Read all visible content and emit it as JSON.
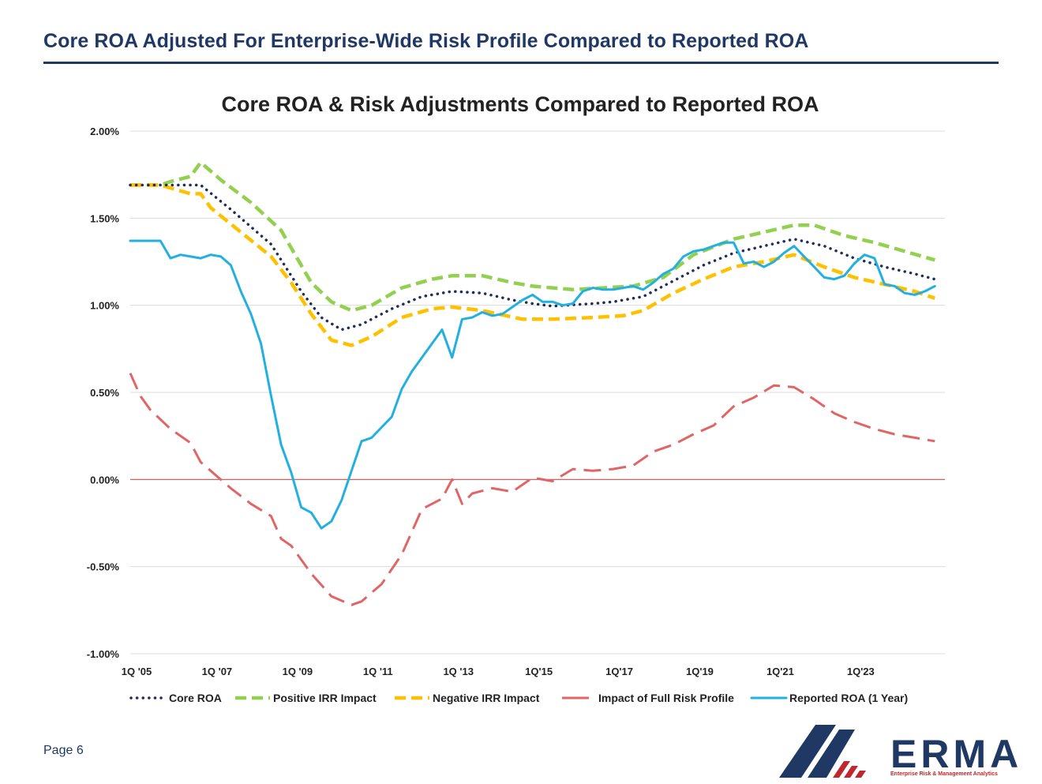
{
  "page": {
    "title": "Core ROA Adjusted For Enterprise-Wide Risk Profile Compared to Reported ROA",
    "page_number": "Page 6"
  },
  "logo": {
    "word": "ERMA",
    "tagline": "Enterprise Risk & Management Analytics",
    "colors": {
      "navy": "#1f3864",
      "red": "#c0262d"
    }
  },
  "chart_data": {
    "type": "line",
    "title": "Core ROA & Risk Adjustments Compared to Reported ROA",
    "xlabel": "",
    "ylabel": "",
    "ylim": [
      -1.0,
      2.0
    ],
    "yticks": [
      {
        "value": 2.0,
        "label": "2.00%"
      },
      {
        "value": 1.5,
        "label": "1.50%"
      },
      {
        "value": 1.0,
        "label": "1.00%"
      },
      {
        "value": 0.5,
        "label": "0.50%"
      },
      {
        "value": 0.0,
        "label": "0.00%"
      },
      {
        "value": -0.5,
        "label": "-0.50%"
      },
      {
        "value": -1.0,
        "label": "-1.00%"
      }
    ],
    "xlim": [
      2005.0,
      2025.25
    ],
    "xticks": [
      {
        "value": 2005,
        "label": "1Q '05"
      },
      {
        "value": 2007,
        "label": "1Q '07"
      },
      {
        "value": 2009,
        "label": "1Q '09"
      },
      {
        "value": 2011,
        "label": "1Q '11"
      },
      {
        "value": 2013,
        "label": "1Q '13"
      },
      {
        "value": 2015,
        "label": "1Q'15"
      },
      {
        "value": 2017,
        "label": "1Q'17"
      },
      {
        "value": 2019,
        "label": "1Q'19"
      },
      {
        "value": 2021,
        "label": "1Q'21"
      },
      {
        "value": 2023,
        "label": "1Q'23"
      }
    ],
    "grid": true,
    "legend_position": "bottom",
    "zero_line_color": "#c0504d",
    "series": [
      {
        "name": "Core ROA",
        "style": "dotted",
        "color": "#1f2d5c",
        "points": [
          [
            2005.0,
            1.69
          ],
          [
            2005.75,
            1.69
          ],
          [
            2006.5,
            1.69
          ],
          [
            2006.75,
            1.69
          ],
          [
            2007.5,
            1.55
          ],
          [
            2008.5,
            1.35
          ],
          [
            2009.25,
            1.08
          ],
          [
            2009.75,
            0.93
          ],
          [
            2010.25,
            0.86
          ],
          [
            2010.75,
            0.89
          ],
          [
            2011.5,
            0.98
          ],
          [
            2012.25,
            1.05
          ],
          [
            2013.0,
            1.08
          ],
          [
            2013.75,
            1.07
          ],
          [
            2014.5,
            1.03
          ],
          [
            2015.0,
            1.01
          ],
          [
            2015.5,
            0.995
          ],
          [
            2016.5,
            1.01
          ],
          [
            2017.0,
            1.02
          ],
          [
            2017.75,
            1.05
          ],
          [
            2018.5,
            1.14
          ],
          [
            2019.25,
            1.23
          ],
          [
            2020.0,
            1.3
          ],
          [
            2020.75,
            1.34
          ],
          [
            2021.5,
            1.38
          ],
          [
            2022.25,
            1.34
          ],
          [
            2023.0,
            1.27
          ],
          [
            2023.75,
            1.22
          ],
          [
            2024.5,
            1.18
          ],
          [
            2025.0,
            1.15
          ]
        ]
      },
      {
        "name": "Positive IRR Impact",
        "style": "dashed",
        "color": "#92d050",
        "points": [
          [
            2005.0,
            1.69
          ],
          [
            2005.75,
            1.69
          ],
          [
            2006.0,
            1.71
          ],
          [
            2006.5,
            1.74
          ],
          [
            2006.75,
            1.82
          ],
          [
            2007.25,
            1.72
          ],
          [
            2008.0,
            1.59
          ],
          [
            2008.75,
            1.43
          ],
          [
            2009.5,
            1.13
          ],
          [
            2010.0,
            1.02
          ],
          [
            2010.5,
            0.97
          ],
          [
            2011.0,
            1.0
          ],
          [
            2011.75,
            1.1
          ],
          [
            2012.5,
            1.15
          ],
          [
            2013.0,
            1.17
          ],
          [
            2013.75,
            1.17
          ],
          [
            2014.5,
            1.13
          ],
          [
            2015.0,
            1.11
          ],
          [
            2016.0,
            1.09
          ],
          [
            2016.75,
            1.1
          ],
          [
            2017.5,
            1.11
          ],
          [
            2018.25,
            1.16
          ],
          [
            2019.0,
            1.29
          ],
          [
            2020.0,
            1.38
          ],
          [
            2020.75,
            1.42
          ],
          [
            2021.5,
            1.46
          ],
          [
            2022.0,
            1.46
          ],
          [
            2022.75,
            1.4
          ],
          [
            2023.5,
            1.36
          ],
          [
            2024.25,
            1.31
          ],
          [
            2025.0,
            1.26
          ]
        ]
      },
      {
        "name": "Negative IRR Impact",
        "style": "dashed",
        "color": "#ffc000",
        "points": [
          [
            2005.0,
            1.69
          ],
          [
            2005.75,
            1.69
          ],
          [
            2006.5,
            1.64
          ],
          [
            2006.75,
            1.64
          ],
          [
            2007.0,
            1.56
          ],
          [
            2007.75,
            1.42
          ],
          [
            2008.5,
            1.28
          ],
          [
            2009.0,
            1.13
          ],
          [
            2009.5,
            0.95
          ],
          [
            2010.0,
            0.8
          ],
          [
            2010.5,
            0.77
          ],
          [
            2011.0,
            0.82
          ],
          [
            2011.75,
            0.93
          ],
          [
            2012.5,
            0.98
          ],
          [
            2013.0,
            0.99
          ],
          [
            2013.75,
            0.97
          ],
          [
            2014.75,
            0.92
          ],
          [
            2015.5,
            0.92
          ],
          [
            2016.5,
            0.93
          ],
          [
            2017.25,
            0.94
          ],
          [
            2017.75,
            0.97
          ],
          [
            2018.5,
            1.07
          ],
          [
            2019.25,
            1.15
          ],
          [
            2020.0,
            1.22
          ],
          [
            2020.75,
            1.25
          ],
          [
            2021.5,
            1.29
          ],
          [
            2022.25,
            1.22
          ],
          [
            2023.0,
            1.16
          ],
          [
            2023.75,
            1.12
          ],
          [
            2024.5,
            1.08
          ],
          [
            2025.0,
            1.04
          ]
        ]
      },
      {
        "name": "Impact of Full Risk Profile",
        "style": "longdash",
        "color": "#e06666",
        "points": [
          [
            2005.0,
            0.61
          ],
          [
            2005.25,
            0.48
          ],
          [
            2005.5,
            0.4
          ],
          [
            2006.0,
            0.29
          ],
          [
            2006.5,
            0.21
          ],
          [
            2006.75,
            0.1
          ],
          [
            2007.5,
            -0.05
          ],
          [
            2008.0,
            -0.14
          ],
          [
            2008.5,
            -0.21
          ],
          [
            2008.75,
            -0.34
          ],
          [
            2009.0,
            -0.38
          ],
          [
            2009.5,
            -0.54
          ],
          [
            2010.0,
            -0.67
          ],
          [
            2010.5,
            -0.72
          ],
          [
            2010.75,
            -0.7
          ],
          [
            2011.25,
            -0.6
          ],
          [
            2011.75,
            -0.43
          ],
          [
            2012.25,
            -0.17
          ],
          [
            2012.75,
            -0.11
          ],
          [
            2013.0,
            0.0
          ],
          [
            2013.25,
            -0.14
          ],
          [
            2013.5,
            -0.08
          ],
          [
            2014.0,
            -0.05
          ],
          [
            2014.5,
            -0.07
          ],
          [
            2015.0,
            0.01
          ],
          [
            2015.5,
            -0.01
          ],
          [
            2016.0,
            0.06
          ],
          [
            2016.5,
            0.05
          ],
          [
            2017.0,
            0.06
          ],
          [
            2017.5,
            0.08
          ],
          [
            2018.0,
            0.16
          ],
          [
            2018.5,
            0.2
          ],
          [
            2019.0,
            0.26
          ],
          [
            2019.5,
            0.31
          ],
          [
            2020.0,
            0.42
          ],
          [
            2020.5,
            0.47
          ],
          [
            2021.0,
            0.54
          ],
          [
            2021.5,
            0.53
          ],
          [
            2022.0,
            0.46
          ],
          [
            2022.5,
            0.38
          ],
          [
            2023.0,
            0.33
          ],
          [
            2023.5,
            0.29
          ],
          [
            2024.0,
            0.26
          ],
          [
            2024.5,
            0.24
          ],
          [
            2025.0,
            0.22
          ]
        ]
      },
      {
        "name": "Reported ROA (1 Year)",
        "style": "solid",
        "color": "#22b0e0",
        "points": [
          [
            2005.0,
            1.37
          ],
          [
            2005.75,
            1.37
          ],
          [
            2006.0,
            1.27
          ],
          [
            2006.25,
            1.29
          ],
          [
            2006.5,
            1.28
          ],
          [
            2006.75,
            1.27
          ],
          [
            2007.0,
            1.29
          ],
          [
            2007.25,
            1.28
          ],
          [
            2007.5,
            1.23
          ],
          [
            2007.75,
            1.08
          ],
          [
            2008.0,
            0.95
          ],
          [
            2008.25,
            0.78
          ],
          [
            2008.5,
            0.48
          ],
          [
            2008.75,
            0.2
          ],
          [
            2009.0,
            0.04
          ],
          [
            2009.25,
            -0.16
          ],
          [
            2009.5,
            -0.19
          ],
          [
            2009.75,
            -0.28
          ],
          [
            2010.0,
            -0.24
          ],
          [
            2010.25,
            -0.12
          ],
          [
            2010.5,
            0.05
          ],
          [
            2010.75,
            0.22
          ],
          [
            2011.0,
            0.24
          ],
          [
            2011.25,
            0.3
          ],
          [
            2011.5,
            0.36
          ],
          [
            2011.75,
            0.52
          ],
          [
            2012.0,
            0.62
          ],
          [
            2012.25,
            0.7
          ],
          [
            2012.5,
            0.78
          ],
          [
            2012.75,
            0.86
          ],
          [
            2013.0,
            0.7
          ],
          [
            2013.25,
            0.92
          ],
          [
            2013.5,
            0.93
          ],
          [
            2013.75,
            0.96
          ],
          [
            2014.0,
            0.94
          ],
          [
            2014.25,
            0.95
          ],
          [
            2014.5,
            0.99
          ],
          [
            2014.75,
            1.03
          ],
          [
            2015.0,
            1.06
          ],
          [
            2015.25,
            1.02
          ],
          [
            2015.5,
            1.02
          ],
          [
            2015.75,
            1.0
          ],
          [
            2016.0,
            1.01
          ],
          [
            2016.25,
            1.08
          ],
          [
            2016.5,
            1.1
          ],
          [
            2016.75,
            1.09
          ],
          [
            2017.0,
            1.09
          ],
          [
            2017.25,
            1.1
          ],
          [
            2017.5,
            1.11
          ],
          [
            2017.75,
            1.09
          ],
          [
            2018.0,
            1.13
          ],
          [
            2018.25,
            1.18
          ],
          [
            2018.5,
            1.21
          ],
          [
            2018.75,
            1.28
          ],
          [
            2019.0,
            1.31
          ],
          [
            2019.25,
            1.32
          ],
          [
            2019.5,
            1.34
          ],
          [
            2019.75,
            1.36
          ],
          [
            2020.0,
            1.36
          ],
          [
            2020.25,
            1.24
          ],
          [
            2020.5,
            1.25
          ],
          [
            2020.75,
            1.22
          ],
          [
            2021.0,
            1.25
          ],
          [
            2021.25,
            1.3
          ],
          [
            2021.5,
            1.34
          ],
          [
            2021.75,
            1.28
          ],
          [
            2022.0,
            1.22
          ],
          [
            2022.25,
            1.16
          ],
          [
            2022.5,
            1.15
          ],
          [
            2022.75,
            1.17
          ],
          [
            2023.0,
            1.24
          ],
          [
            2023.25,
            1.29
          ],
          [
            2023.5,
            1.27
          ],
          [
            2023.75,
            1.12
          ],
          [
            2024.0,
            1.11
          ],
          [
            2024.25,
            1.07
          ],
          [
            2024.5,
            1.06
          ],
          [
            2024.75,
            1.08
          ],
          [
            2025.0,
            1.11
          ]
        ]
      }
    ]
  }
}
